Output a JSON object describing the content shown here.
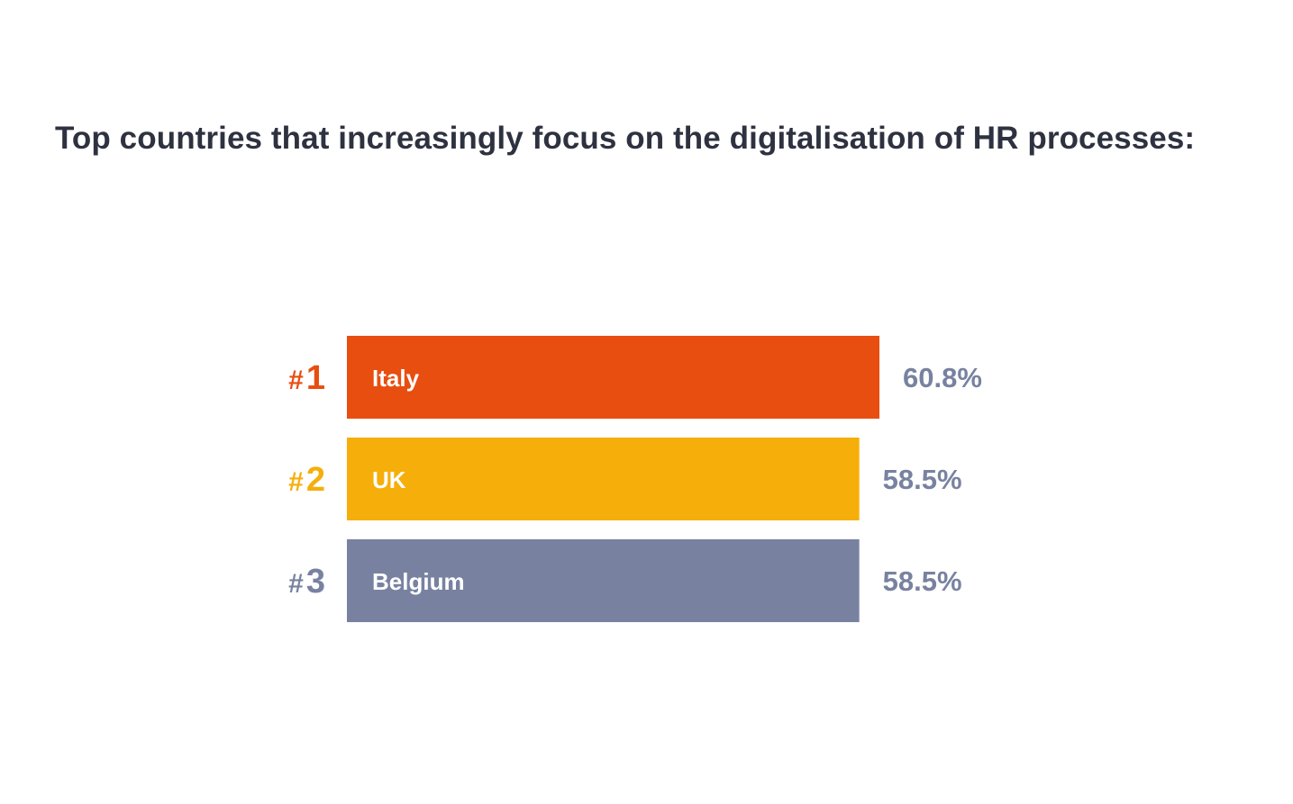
{
  "chart_data": {
    "type": "bar",
    "orientation": "horizontal",
    "title": "Top countries that increasingly focus on the digitalisation of HR processes:",
    "rank_prefix": "#",
    "categories": [
      "Italy",
      "UK",
      "Belgium"
    ],
    "ranks": [
      "1",
      "2",
      "3"
    ],
    "values": [
      60.8,
      58.5,
      58.5
    ],
    "value_labels": [
      "60.8%",
      "58.5%",
      "58.5%"
    ],
    "unit": "%",
    "bar_colors": [
      "#e84e10",
      "#f6ae0a",
      "#7882a0"
    ],
    "rank_colors": [
      "#e84e10",
      "#f6ae0a",
      "#7882a0"
    ],
    "value_label_color": "#7882a0",
    "title_color": "#2e3240",
    "grid": false,
    "axes_visible": false,
    "legend": "none"
  }
}
